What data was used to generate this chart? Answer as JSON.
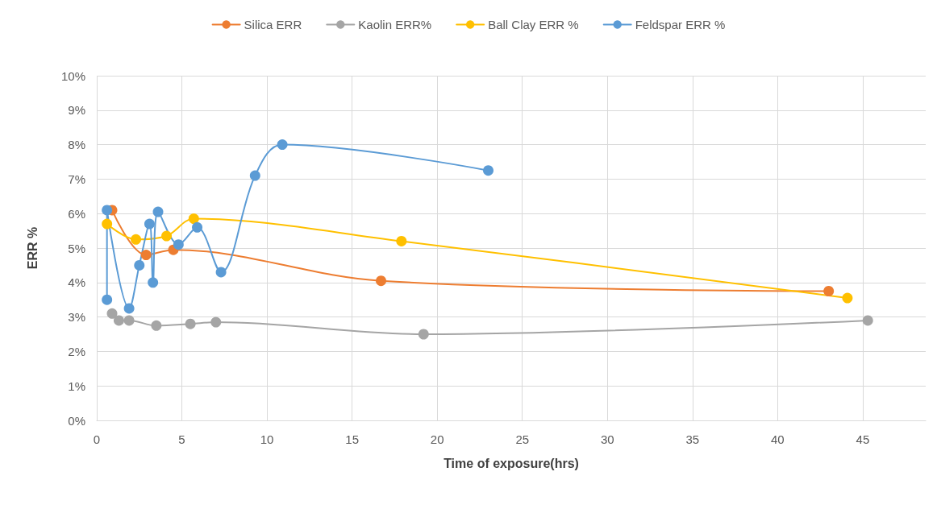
{
  "chart_data": {
    "type": "line",
    "xlabel": "Time of exposure(hrs)",
    "ylabel": "ERR %",
    "xlim": [
      0,
      48.7
    ],
    "xticks": [
      0,
      5,
      10,
      15,
      20,
      25,
      30,
      35,
      40,
      45
    ],
    "ylim": [
      0,
      10
    ],
    "yticks": [
      {
        "value": 0,
        "label": "0%"
      },
      {
        "value": 1,
        "label": "1%"
      },
      {
        "value": 2,
        "label": "2%"
      },
      {
        "value": 3,
        "label": "3%"
      },
      {
        "value": 4,
        "label": "4%"
      },
      {
        "value": 5,
        "label": "5%"
      },
      {
        "value": 6,
        "label": "6%"
      },
      {
        "value": 7,
        "label": "7%"
      },
      {
        "value": 8,
        "label": "8%"
      },
      {
        "value": 9,
        "label": "9%"
      },
      {
        "value": 10,
        "label": "10%"
      }
    ],
    "grid": true,
    "legend": "top",
    "marker": "circle",
    "line_style": "solid",
    "series": [
      {
        "name": "Silica ERR",
        "color": "#ed7d31",
        "x": [
          0.9,
          2.9,
          4.5,
          16.7,
          43.0
        ],
        "values": [
          6.1,
          4.8,
          4.95,
          4.05,
          3.75
        ]
      },
      {
        "name": "Kaolin ERR%",
        "color": "#a5a5a5",
        "x": [
          0.9,
          1.3,
          1.9,
          3.5,
          5.5,
          7.0,
          19.2,
          45.3
        ],
        "values": [
          3.1,
          2.9,
          2.9,
          2.75,
          2.8,
          2.85,
          2.5,
          2.9
        ]
      },
      {
        "name": "Ball Clay ERR %",
        "color": "#ffc000",
        "x": [
          0.6,
          2.3,
          4.1,
          5.7,
          17.9,
          44.1
        ],
        "values": [
          5.7,
          5.25,
          5.35,
          5.85,
          5.2,
          3.55
        ]
      },
      {
        "name": "Feldspar ERR %",
        "color": "#5b9bd5",
        "x": [
          0.6,
          0.6,
          1.9,
          2.5,
          3.1,
          3.3,
          3.6,
          4.8,
          5.9,
          7.3,
          9.3,
          10.9,
          23.0
        ],
        "values": [
          3.5,
          6.1,
          3.25,
          4.5,
          5.7,
          4.0,
          6.05,
          5.1,
          5.6,
          4.3,
          7.1,
          8.0,
          7.25
        ]
      }
    ]
  }
}
